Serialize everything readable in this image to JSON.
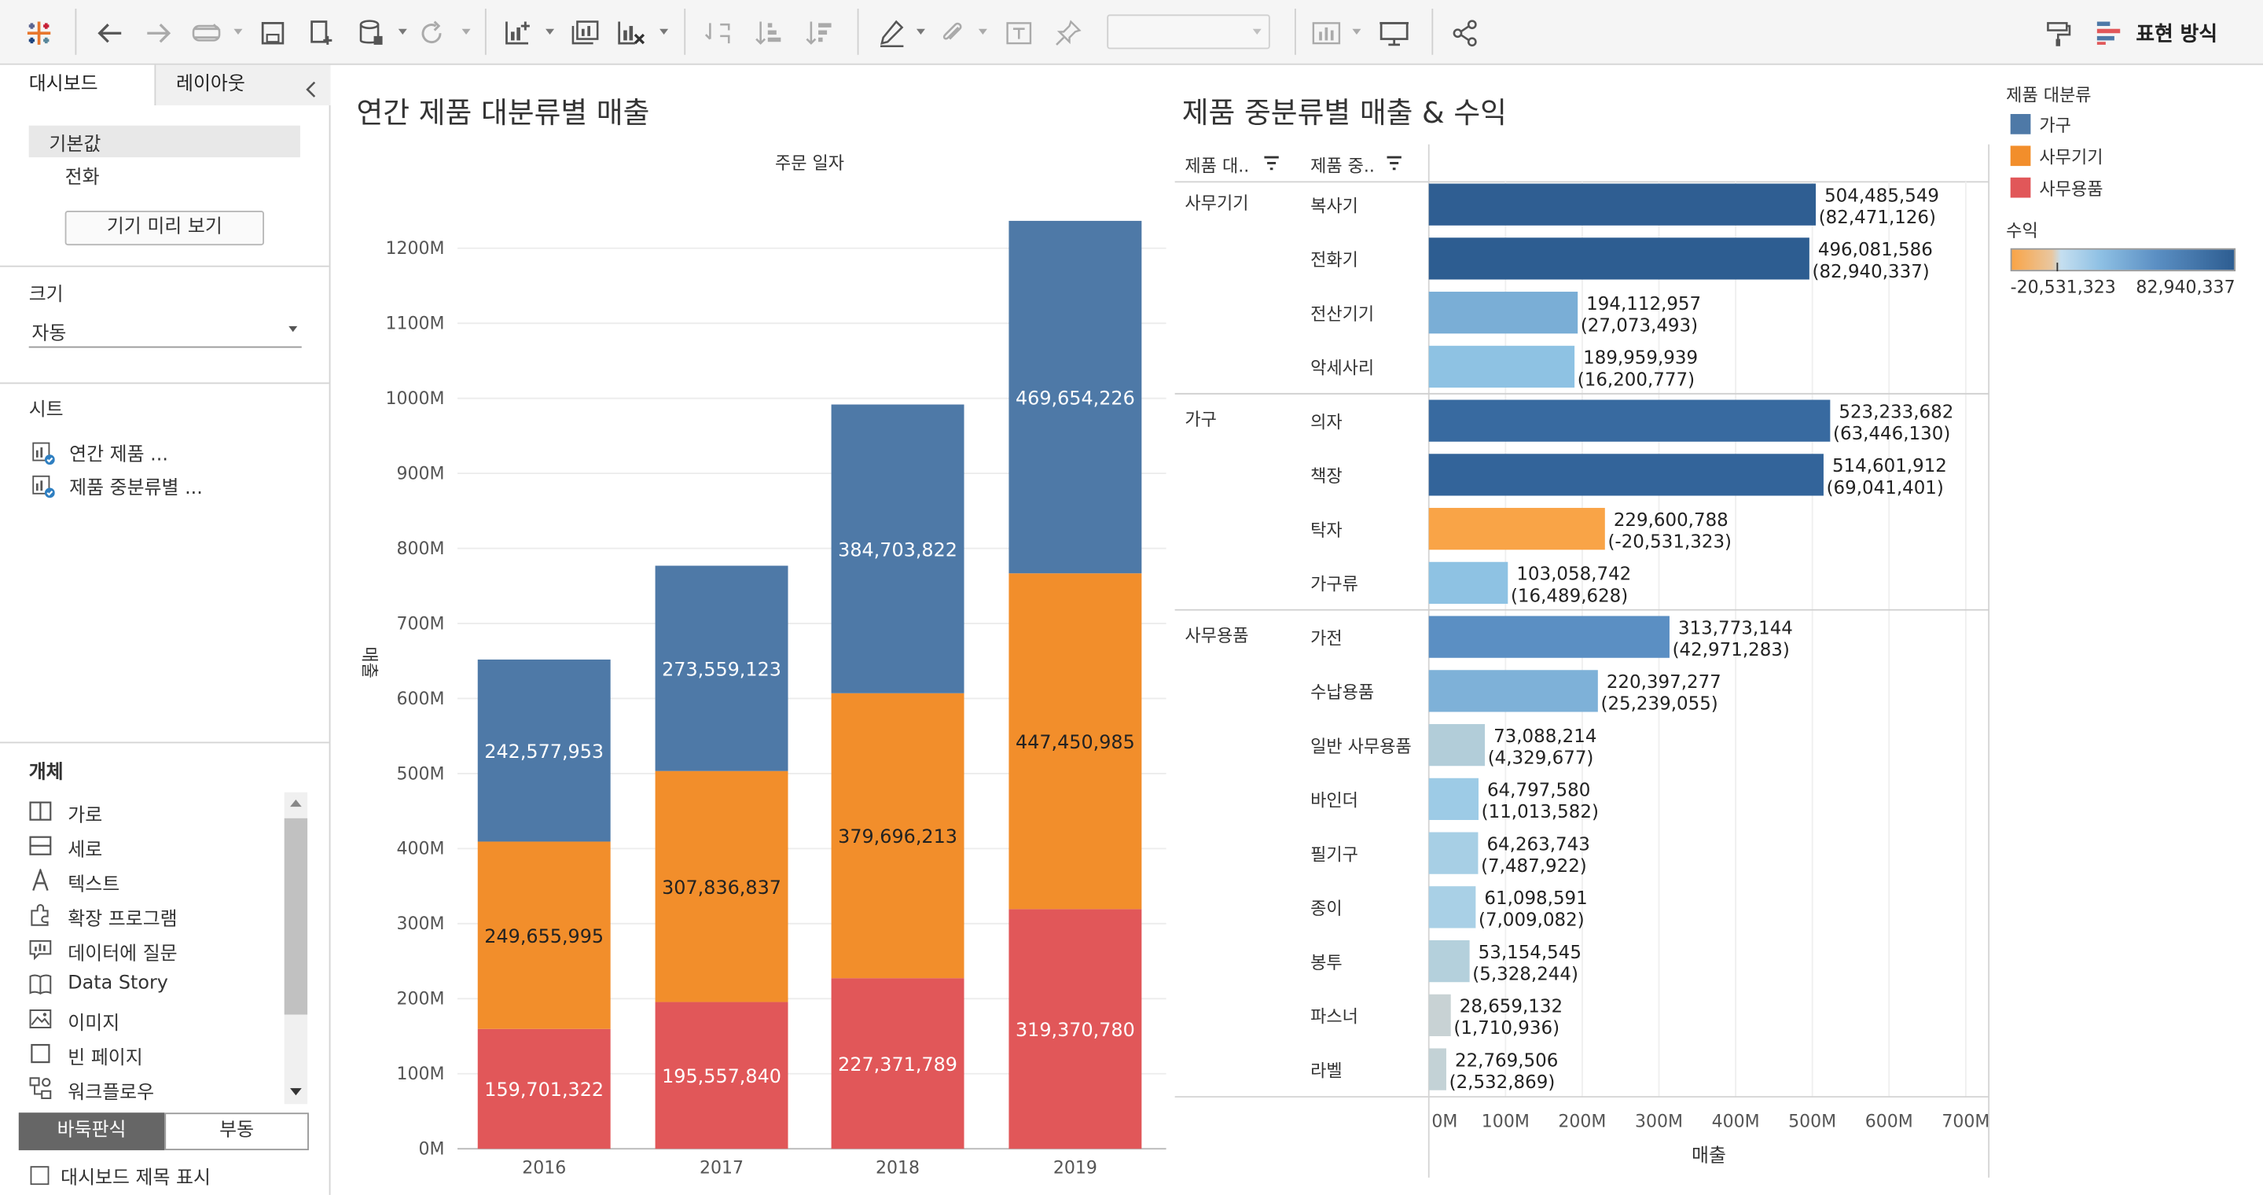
{
  "toolbar": {
    "show_me_label": "표현 방식",
    "icons": [
      "tableau-logo-icon",
      "undo-icon",
      "redo-icon",
      "replay-icon",
      "save-icon",
      "new-datasource-icon",
      "datasource-icon",
      "refresh-icon",
      "new-worksheet-icon",
      "duplicate-icon",
      "clear-icon",
      "swap-icon",
      "sort-asc-icon",
      "sort-desc-icon",
      "highlight-icon",
      "annotate-icon",
      "label-icon",
      "pin-icon",
      "show-cards-icon",
      "presentation-icon",
      "share-icon",
      "show-me-icon"
    ]
  },
  "left_panel": {
    "tabs": [
      "대시보드",
      "레이아웃"
    ],
    "device_options": [
      "기본값",
      "전화"
    ],
    "device_preview_button": "기기 미리 보기",
    "size_title": "크기",
    "size_value": "자동",
    "sheets_title": "시트",
    "sheets": [
      "연간 제품 ...",
      "제품 중분류별 ..."
    ],
    "objects_title": "개체",
    "objects": [
      "가로",
      "세로",
      "텍스트",
      "확장 프로그램",
      "데이터에 질문",
      "Data Story",
      "이미지",
      "빈 페이지",
      "워크플로우"
    ],
    "layout_toggle": [
      "바둑판식",
      "부동"
    ],
    "show_title_checkbox": "대시보드 제목 표시"
  },
  "dashboard": {
    "left_title": "연간 제품 대분류별 매출",
    "right_title": "제품 중분류별 매출 & 수익"
  },
  "legend": {
    "category_title": "제품 대분류",
    "categories": [
      {
        "name": "가구",
        "color": "#4e79a7"
      },
      {
        "name": "사무기기",
        "color": "#f28e2b"
      },
      {
        "name": "사무용품",
        "color": "#e15759"
      }
    ],
    "profit_title": "수익",
    "profit_min": "-20,531,323",
    "profit_max": "82,940,337"
  },
  "chart_data": [
    {
      "type": "bar",
      "stacked": true,
      "title": "연간 제품 대분류별 매출",
      "xlabel": "주문 일자",
      "ylabel": "매출",
      "categories": [
        "2016",
        "2017",
        "2018",
        "2019"
      ],
      "y_ticks": [
        "1200M",
        "1100M",
        "1000M",
        "900M",
        "800M",
        "700M",
        "600M",
        "500M",
        "400M",
        "300M",
        "200M",
        "100M",
        "0M"
      ],
      "ylim": [
        0,
        1250000000
      ],
      "series": [
        {
          "name": "사무용품",
          "color": "#e15759",
          "values": [
            159701322,
            195557840,
            227371789,
            319370780
          ],
          "labels": [
            "159,701,322",
            "195,557,840",
            "227,371,789",
            "319,370,780"
          ]
        },
        {
          "name": "사무기기",
          "color": "#f28e2b",
          "values": [
            249655995,
            307836837,
            379696213,
            447450985
          ],
          "labels": [
            "249,655,995",
            "307,836,837",
            "379,696,213",
            "447,450,985"
          ]
        },
        {
          "name": "가구",
          "color": "#4e79a7",
          "values": [
            242577953,
            273559123,
            384703822,
            469654226
          ],
          "labels": [
            "242,577,953",
            "273,559,123",
            "384,703,822",
            "469,654,226"
          ]
        }
      ]
    },
    {
      "type": "bar",
      "orientation": "horizontal",
      "title": "제품 중분류별 매출 & 수익",
      "xlabel": "매출",
      "col_headers": [
        "제품 대..",
        "제품 중.."
      ],
      "x_ticks": [
        "0M",
        "100M",
        "200M",
        "300M",
        "400M",
        "500M",
        "600M",
        "700M"
      ],
      "xlim": [
        0,
        730000000
      ],
      "groups": [
        {
          "name": "사무기기",
          "rows": [
            {
              "name": "복사기",
              "sales": 504485549,
              "profit": 82471126,
              "sales_label": "504,485,549",
              "profit_label": "(82,471,126)",
              "color": "#2f5e92"
            },
            {
              "name": "전화기",
              "sales": 496081586,
              "profit": 82940337,
              "sales_label": "496,081,586",
              "profit_label": "(82,940,337)",
              "color": "#2d5d91"
            },
            {
              "name": "전산기기",
              "sales": 194112957,
              "profit": 27073493,
              "sales_label": "194,112,957",
              "profit_label": "(27,073,493)",
              "color": "#7aaed6"
            },
            {
              "name": "악세사리",
              "sales": 189959939,
              "profit": 16200777,
              "sales_label": "189,959,939",
              "profit_label": "(16,200,777)",
              "color": "#8ec2e3"
            }
          ]
        },
        {
          "name": "가구",
          "rows": [
            {
              "name": "의자",
              "sales": 523233682,
              "profit": 63446130,
              "sales_label": "523,233,682",
              "profit_label": "(63,446,130)",
              "color": "#386aa0"
            },
            {
              "name": "책장",
              "sales": 514601912,
              "profit": 69041401,
              "sales_label": "514,601,912",
              "profit_label": "(69,041,401)",
              "color": "#33649a"
            },
            {
              "name": "탁자",
              "sales": 229600788,
              "profit": -20531323,
              "sales_label": "229,600,788",
              "profit_label": "(-20,531,323)",
              "color": "#f9a447"
            },
            {
              "name": "가구류",
              "sales": 103058742,
              "profit": 16489628,
              "sales_label": "103,058,742",
              "profit_label": "(16,489,628)",
              "color": "#8ec2e3"
            }
          ]
        },
        {
          "name": "사무용품",
          "rows": [
            {
              "name": "가전",
              "sales": 313773144,
              "profit": 42971283,
              "sales_label": "313,773,144",
              "profit_label": "(42,971,283)",
              "color": "#5b8fc3"
            },
            {
              "name": "수납용품",
              "sales": 220397277,
              "profit": 25239055,
              "sales_label": "220,397,277",
              "profit_label": "(25,239,055)",
              "color": "#7eb1d8"
            },
            {
              "name": "일반 사무용품",
              "sales": 73088214,
              "profit": 4329677,
              "sales_label": "73,088,214",
              "profit_label": "(4,329,677)",
              "color": "#b2cdd9"
            },
            {
              "name": "바인더",
              "sales": 64797580,
              "profit": 11013582,
              "sales_label": "64,797,580",
              "profit_label": "(11,013,582)",
              "color": "#9dcbe6"
            },
            {
              "name": "필기구",
              "sales": 64263743,
              "profit": 7487922,
              "sales_label": "64,263,743",
              "profit_label": "(7,487,922)",
              "color": "#a7cfe5"
            },
            {
              "name": "종이",
              "sales": 61098591,
              "profit": 7009082,
              "sales_label": "61,098,591",
              "profit_label": "(7,009,082)",
              "color": "#a9d0e6"
            },
            {
              "name": "봉투",
              "sales": 53154545,
              "profit": 5328244,
              "sales_label": "53,154,545",
              "profit_label": "(5,328,244)",
              "color": "#b4d0dc"
            },
            {
              "name": "파스너",
              "sales": 28659132,
              "profit": 1710936,
              "sales_label": "28,659,132",
              "profit_label": "(1,710,936)",
              "color": "#c8d2d4"
            },
            {
              "name": "라벨",
              "sales": 22769506,
              "profit": 2532869,
              "sales_label": "22,769,506",
              "profit_label": "(2,532,869)",
              "color": "#c3d2d6"
            }
          ]
        }
      ]
    }
  ]
}
